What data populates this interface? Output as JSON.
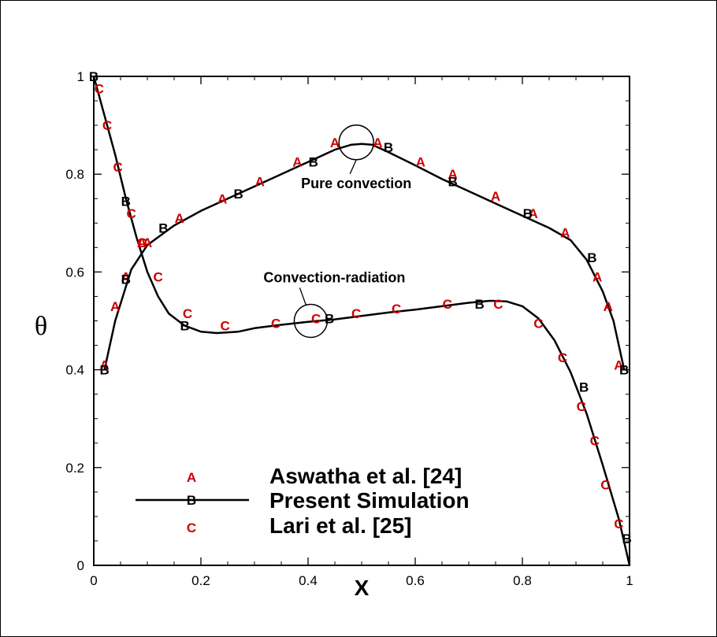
{
  "chart_data": {
    "type": "line",
    "xlabel": "X",
    "ylabel": "θ",
    "xlim": [
      0,
      1
    ],
    "ylim": [
      0,
      1
    ],
    "x_ticks": [
      "0",
      "0.2",
      "0.4",
      "0.6",
      "0.8",
      "1"
    ],
    "y_ticks": [
      "0",
      "0.2",
      "0.4",
      "0.6",
      "0.8",
      "1"
    ],
    "grid": false,
    "legend_position": "bottom-left",
    "series": [
      {
        "name": "Aswatha et al. [24]",
        "marker": "A",
        "color": "#cc0000",
        "style": "markers",
        "x": [
          0.02,
          0.04,
          0.06,
          0.09,
          0.1,
          0.16,
          0.24,
          0.31,
          0.38,
          0.45,
          0.53,
          0.61,
          0.67,
          0.75,
          0.82,
          0.88,
          0.94,
          0.96,
          0.98
        ],
        "y": [
          0.41,
          0.53,
          0.59,
          0.66,
          0.66,
          0.71,
          0.75,
          0.785,
          0.825,
          0.865,
          0.865,
          0.825,
          0.8,
          0.755,
          0.72,
          0.68,
          0.59,
          0.53,
          0.41
        ]
      },
      {
        "name": "Present Simulation",
        "marker": "B",
        "color": "#000000",
        "style": "line+markers",
        "x": [
          0.02,
          0.06,
          0.13,
          0.27,
          0.41,
          0.55,
          0.67,
          0.81,
          0.93,
          0.99
        ],
        "y": [
          0.4,
          0.585,
          0.69,
          0.76,
          0.825,
          0.855,
          0.785,
          0.72,
          0.63,
          0.4
        ]
      },
      {
        "name": "Lari et al. [25]",
        "marker": "C",
        "color": "#cc0000",
        "style": "markers",
        "x": [
          0.01,
          0.025,
          0.045,
          0.07,
          0.09,
          0.12,
          0.175,
          0.245,
          0.34,
          0.415,
          0.49,
          0.565,
          0.66,
          0.755,
          0.83,
          0.875,
          0.91,
          0.935,
          0.955,
          0.98
        ],
        "y": [
          0.975,
          0.9,
          0.815,
          0.72,
          0.66,
          0.59,
          0.515,
          0.49,
          0.495,
          0.505,
          0.515,
          0.525,
          0.535,
          0.535,
          0.495,
          0.425,
          0.325,
          0.255,
          0.165,
          0.085
        ]
      },
      {
        "name": "Present Simulation",
        "marker": "B",
        "color": "#000000",
        "style": "line+markers",
        "x": [
          0.0,
          0.06,
          0.17,
          0.44,
          0.72,
          0.915,
          0.995
        ],
        "y": [
          1.0,
          0.745,
          0.49,
          0.505,
          0.535,
          0.365,
          0.055
        ]
      }
    ],
    "curves": [
      {
        "label": "Pure convection",
        "x": [
          0.02,
          0.04,
          0.07,
          0.1,
          0.15,
          0.2,
          0.25,
          0.3,
          0.35,
          0.4,
          0.45,
          0.48,
          0.5,
          0.52,
          0.55,
          0.6,
          0.65,
          0.7,
          0.75,
          0.8,
          0.85,
          0.89,
          0.92,
          0.95,
          0.97,
          0.99
        ],
        "y": [
          0.4,
          0.5,
          0.605,
          0.655,
          0.695,
          0.725,
          0.75,
          0.775,
          0.8,
          0.825,
          0.85,
          0.86,
          0.862,
          0.86,
          0.845,
          0.818,
          0.79,
          0.765,
          0.74,
          0.715,
          0.69,
          0.665,
          0.625,
          0.56,
          0.5,
          0.4
        ]
      },
      {
        "label": "Convection-radiation",
        "x": [
          0.0,
          0.02,
          0.04,
          0.06,
          0.08,
          0.1,
          0.12,
          0.14,
          0.17,
          0.2,
          0.23,
          0.27,
          0.3,
          0.35,
          0.4,
          0.45,
          0.5,
          0.55,
          0.6,
          0.65,
          0.7,
          0.74,
          0.77,
          0.8,
          0.83,
          0.86,
          0.89,
          0.92,
          0.95,
          0.98,
          1.0
        ],
        "y": [
          1.0,
          0.92,
          0.84,
          0.75,
          0.67,
          0.6,
          0.55,
          0.515,
          0.49,
          0.478,
          0.475,
          0.478,
          0.485,
          0.492,
          0.498,
          0.503,
          0.51,
          0.517,
          0.523,
          0.53,
          0.537,
          0.541,
          0.54,
          0.53,
          0.505,
          0.46,
          0.395,
          0.31,
          0.205,
          0.095,
          0.0
        ]
      }
    ],
    "annotations": [
      {
        "text": "Pure convection",
        "x": 0.49,
        "y": 0.865
      },
      {
        "text": "Convection-radiation",
        "x": 0.405,
        "y": 0.5
      }
    ]
  }
}
